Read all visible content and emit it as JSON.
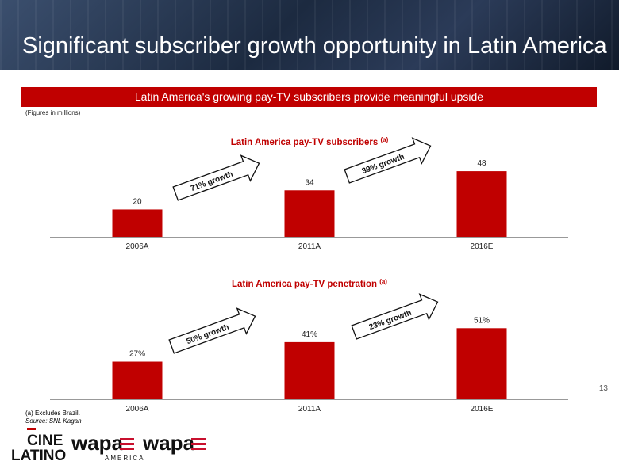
{
  "page": {
    "title": "Significant subscriber growth opportunity in Latin America",
    "banner": "Latin America's growing pay-TV subscribers provide meaningful upside",
    "units_note": "(Figures in millions)",
    "page_number": "13",
    "footnote": "(a)  Excludes Brazil.",
    "source": "Source:  SNL Kagan",
    "colors": {
      "accent": "#c00000",
      "header": "#1c2a40"
    }
  },
  "logos": {
    "cine_line1": "CINE",
    "cine_line2": "LATINO",
    "wapa_america_word": "wapa",
    "wapa_america_sub": "AMERICA",
    "wapa_word": "wapa"
  },
  "chart_data": [
    {
      "type": "bar",
      "title": "Latin America pay-TV subscribers",
      "title_superscript": "(a)",
      "categories": [
        "2006A",
        "2011A",
        "2016E"
      ],
      "values": [
        20,
        34,
        48
      ],
      "value_labels": [
        "20",
        "34",
        "48"
      ],
      "growth_arrows": [
        "71% growth",
        "39% growth"
      ],
      "ylim": [
        0,
        55
      ],
      "color": "#c00000"
    },
    {
      "type": "bar",
      "title": "Latin America pay-TV penetration",
      "title_superscript": "(a)",
      "categories": [
        "2006A",
        "2011A",
        "2016E"
      ],
      "values": [
        27,
        41,
        51
      ],
      "value_labels": [
        "27%",
        "41%",
        "51%"
      ],
      "growth_arrows": [
        "50% growth",
        "23% growth"
      ],
      "ylim": [
        0,
        58
      ],
      "color": "#c00000"
    }
  ]
}
